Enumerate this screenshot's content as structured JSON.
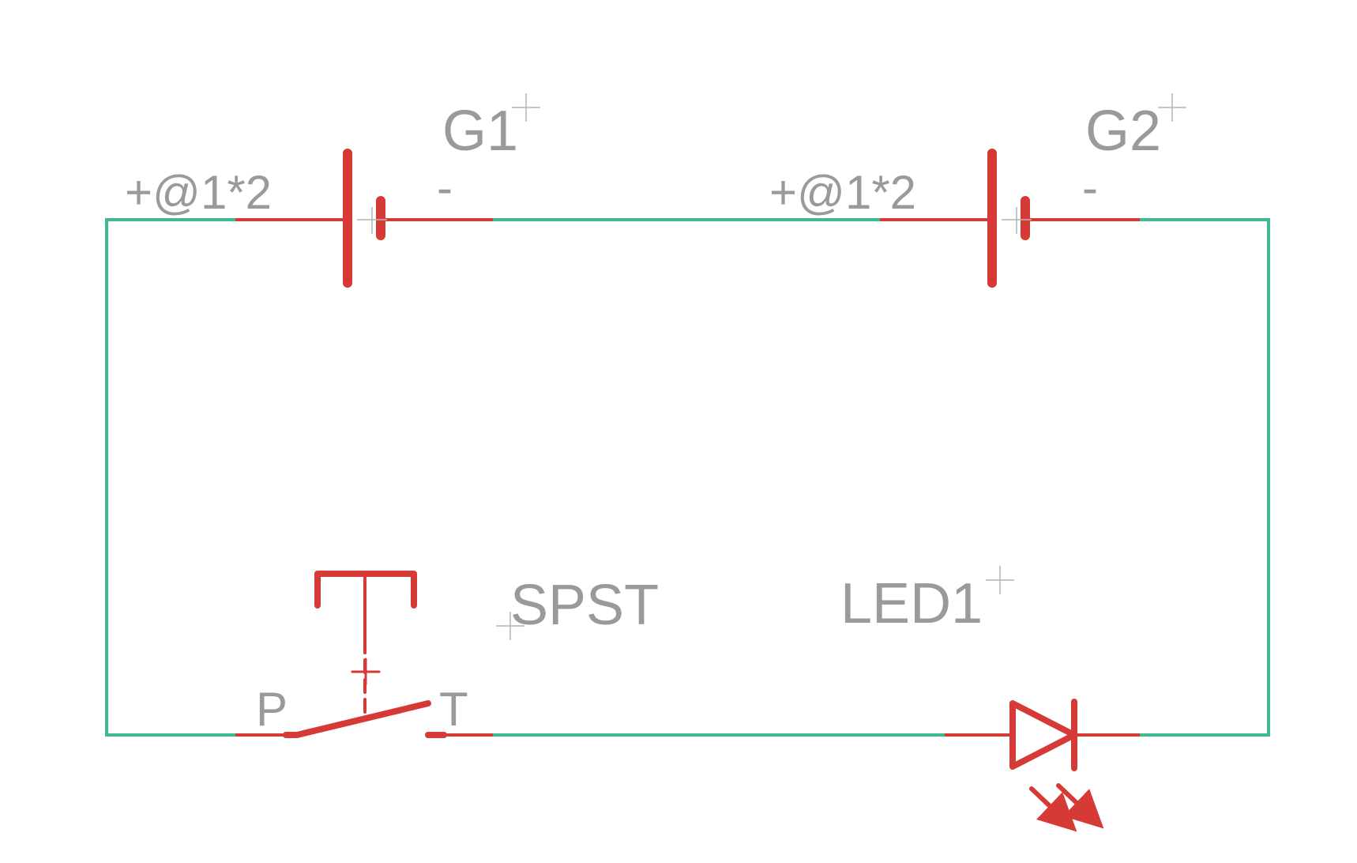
{
  "components": {
    "g1": {
      "name": "G1",
      "plus_label": "+@1*2",
      "minus_label": "-"
    },
    "g2": {
      "name": "G2",
      "plus_label": "+@1*2",
      "minus_label": "-"
    },
    "switch": {
      "name": "SPST",
      "pin_p": "P",
      "pin_t": "T"
    },
    "led": {
      "name": "LED1"
    }
  },
  "colors": {
    "wire": "#3dbb8f",
    "symbol": "#d63a36",
    "label": "#9a9a9a",
    "background": "#ffffff"
  }
}
